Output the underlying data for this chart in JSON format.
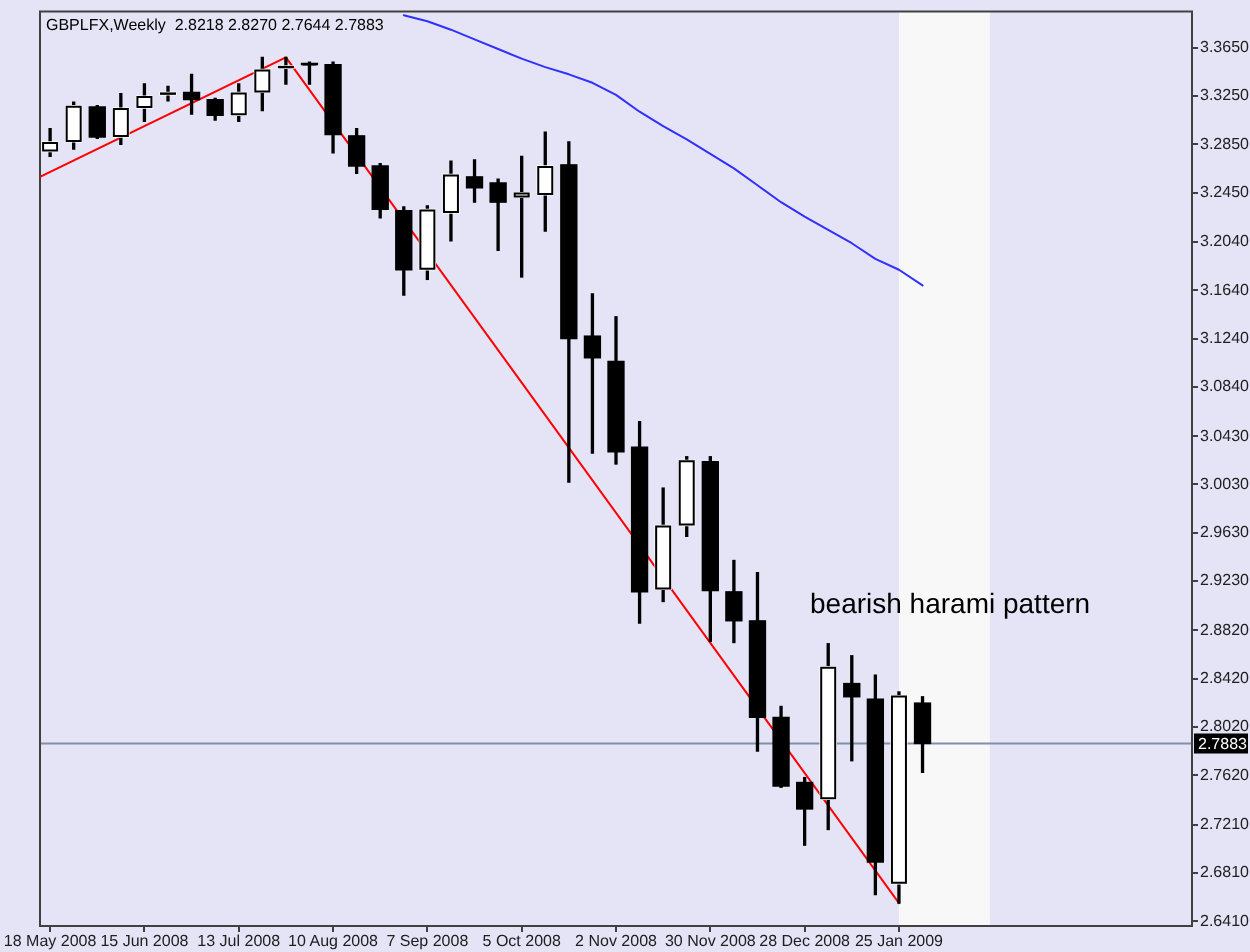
{
  "chart_data": {
    "type": "candlestick",
    "title": "GBPLFX,Weekly  2.8218 2.8270 2.7644 2.7883",
    "x": [
      "2008-05-18",
      "2008-05-25",
      "2008-06-01",
      "2008-06-08",
      "2008-06-15",
      "2008-06-22",
      "2008-06-29",
      "2008-07-06",
      "2008-07-13",
      "2008-07-20",
      "2008-07-27",
      "2008-08-03",
      "2008-08-10",
      "2008-08-17",
      "2008-08-24",
      "2008-08-31",
      "2008-09-07",
      "2008-09-14",
      "2008-09-21",
      "2008-09-28",
      "2008-10-05",
      "2008-10-12",
      "2008-10-19",
      "2008-10-26",
      "2008-11-02",
      "2008-11-09",
      "2008-11-16",
      "2008-11-23",
      "2008-11-30",
      "2008-12-07",
      "2008-12-14",
      "2008-12-21",
      "2008-12-28",
      "2009-01-04",
      "2009-01-11",
      "2009-01-18",
      "2009-01-25",
      "2009-02-01"
    ],
    "ohlc": [
      [
        3.279,
        3.298,
        3.275,
        3.287
      ],
      [
        3.287,
        3.32,
        3.281,
        3.317
      ],
      [
        3.316,
        3.317,
        3.29,
        3.291
      ],
      [
        3.291,
        3.327,
        3.285,
        3.315
      ],
      [
        3.315,
        3.335,
        3.304,
        3.325
      ],
      [
        3.326,
        3.333,
        3.321,
        3.328
      ],
      [
        3.328,
        3.343,
        3.31,
        3.322
      ],
      [
        3.322,
        3.323,
        3.305,
        3.309
      ],
      [
        3.309,
        3.335,
        3.304,
        3.328
      ],
      [
        3.328,
        3.357,
        3.313,
        3.347
      ],
      [
        3.348,
        3.357,
        3.335,
        3.35
      ],
      [
        3.352,
        3.353,
        3.335,
        3.351
      ],
      [
        3.351,
        3.353,
        3.278,
        3.293
      ],
      [
        3.292,
        3.298,
        3.261,
        3.267
      ],
      [
        3.267,
        3.269,
        3.224,
        3.231
      ],
      [
        3.23,
        3.233,
        3.16,
        3.181
      ],
      [
        3.181,
        3.234,
        3.173,
        3.231
      ],
      [
        3.228,
        3.271,
        3.205,
        3.26
      ],
      [
        3.258,
        3.272,
        3.237,
        3.249
      ],
      [
        3.253,
        3.256,
        3.197,
        3.237
      ],
      [
        3.241,
        3.275,
        3.175,
        3.245
      ],
      [
        3.243,
        3.295,
        3.213,
        3.267
      ],
      [
        3.268,
        3.287,
        3.005,
        3.124
      ],
      [
        3.126,
        3.161,
        3.029,
        3.108
      ],
      [
        3.105,
        3.142,
        3.02,
        3.03
      ],
      [
        3.034,
        3.055,
        2.888,
        2.914
      ],
      [
        2.916,
        3.0,
        2.906,
        2.969
      ],
      [
        2.969,
        3.026,
        2.96,
        3.023
      ],
      [
        3.022,
        3.026,
        2.873,
        2.915
      ],
      [
        2.914,
        2.94,
        2.872,
        2.89
      ],
      [
        2.89,
        2.93,
        2.782,
        2.81
      ],
      [
        2.81,
        2.819,
        2.752,
        2.753
      ],
      [
        2.756,
        2.76,
        2.704,
        2.734
      ],
      [
        2.742,
        2.871,
        2.717,
        2.852
      ],
      [
        2.838,
        2.861,
        2.774,
        2.827
      ],
      [
        2.825,
        2.845,
        2.663,
        2.69
      ],
      [
        2.672,
        2.831,
        2.656,
        2.828
      ],
      [
        2.8218,
        2.827,
        2.7644,
        2.7883
      ]
    ],
    "colors": [
      "#ffffff",
      "#ffffff",
      "#000000",
      "#ffffff",
      "#ffffff",
      "#ffffff",
      "#000000",
      "#000000",
      "#ffffff",
      "#ffffff",
      "#ffffff",
      "#000000",
      "#000000",
      "#000000",
      "#000000",
      "#000000",
      "#ffffff",
      "#ffffff",
      "#000000",
      "#000000",
      "#ffffff",
      "#ffffff",
      "#000000",
      "#000000",
      "#000000",
      "#000000",
      "#ffffff",
      "#ffffff",
      "#000000",
      "#000000",
      "#000000",
      "#000000",
      "#000000",
      "#ffffff",
      "#000000",
      "#000000",
      "#ffffff",
      "#000000"
    ],
    "series": [
      {
        "type": "line",
        "color": "#ff0000",
        "x": [
          "2008-05-15",
          "2008-07-27",
          "2009-01-25"
        ],
        "values": [
          3.258,
          3.357,
          2.656
        ]
      },
      {
        "type": "line",
        "color": "#3030ff",
        "x": [
          "2008-08-31",
          "2008-09-07",
          "2008-09-14",
          "2008-09-21",
          "2008-09-28",
          "2008-10-05",
          "2008-10-12",
          "2008-10-19",
          "2008-10-26",
          "2008-11-02",
          "2008-11-09",
          "2008-11-16",
          "2008-11-23",
          "2008-11-30",
          "2008-12-07",
          "2008-12-14",
          "2008-12-21",
          "2008-12-28",
          "2009-01-04",
          "2009-01-11",
          "2009-01-18",
          "2009-01-25",
          "2009-02-01"
        ],
        "values": [
          3.392,
          3.387,
          3.38,
          3.372,
          3.364,
          3.356,
          3.349,
          3.343,
          3.336,
          3.326,
          3.312,
          3.3,
          3.289,
          3.277,
          3.265,
          3.251,
          3.237,
          3.225,
          3.214,
          3.203,
          3.19,
          3.181,
          3.168
        ]
      }
    ],
    "xlim": [
      "2008-05-15",
      "2009-04-22"
    ],
    "xticks": [
      {
        "value": "2008-05-18",
        "label": "18 May 2008"
      },
      {
        "value": "2008-06-15",
        "label": "15 Jun 2008"
      },
      {
        "value": "2008-07-13",
        "label": "13 Jul 2008"
      },
      {
        "value": "2008-08-10",
        "label": "10 Aug 2008"
      },
      {
        "value": "2008-09-07",
        "label": "7 Sep 2008"
      },
      {
        "value": "2008-10-05",
        "label": "5 Oct 2008"
      },
      {
        "value": "2008-11-02",
        "label": "2 Nov 2008"
      },
      {
        "value": "2008-11-30",
        "label": "30 Nov 2008"
      },
      {
        "value": "2008-12-28",
        "label": "28 Dec 2008"
      },
      {
        "value": "2009-01-25",
        "label": "25 Jan 2009"
      }
    ],
    "ylim": [
      2.637,
      3.395
    ],
    "yticks": [
      {
        "value": 3.365,
        "label": "3.3650"
      },
      {
        "value": 3.325,
        "label": "3.3250"
      },
      {
        "value": 3.285,
        "label": "3.2850"
      },
      {
        "value": 3.245,
        "label": "3.2450"
      },
      {
        "value": 3.204,
        "label": "3.2040"
      },
      {
        "value": 3.164,
        "label": "3.1640"
      },
      {
        "value": 3.124,
        "label": "3.1240"
      },
      {
        "value": 3.084,
        "label": "3.0840"
      },
      {
        "value": 3.043,
        "label": "3.0430"
      },
      {
        "value": 3.003,
        "label": "3.0030"
      },
      {
        "value": 2.963,
        "label": "2.9630"
      },
      {
        "value": 2.923,
        "label": "2.9230"
      },
      {
        "value": 2.882,
        "label": "2.8820"
      },
      {
        "value": 2.842,
        "label": "2.8420"
      },
      {
        "value": 2.802,
        "label": "2.8020"
      },
      {
        "value": 2.762,
        "label": "2.7620"
      },
      {
        "value": 2.721,
        "label": "2.7210"
      },
      {
        "value": 2.681,
        "label": "2.6810"
      },
      {
        "value": 2.641,
        "label": "2.6410"
      }
    ],
    "ref_lines": [
      {
        "axis": "y",
        "value": 2.7883,
        "label": "2.7883",
        "color": "#7f90a8"
      }
    ],
    "bands": [
      {
        "axis": "x",
        "from": "2009-01-25",
        "to": "2009-02-21",
        "color": "#f8f8f8"
      }
    ],
    "annotations": [
      "bearish harami pattern"
    ]
  }
}
